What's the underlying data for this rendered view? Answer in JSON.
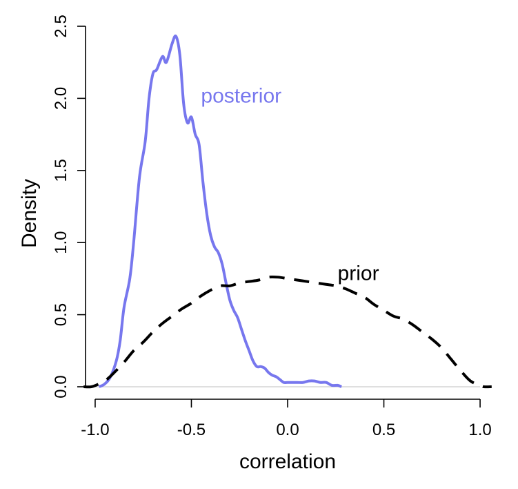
{
  "chart_data": {
    "type": "line",
    "title": "",
    "xlabel": "correlation",
    "ylabel": "Density",
    "xlim": [
      -1.05,
      1.05
    ],
    "ylim": [
      0,
      2.5
    ],
    "x_ticks": [
      -1.0,
      -0.5,
      0.0,
      0.5,
      1.0
    ],
    "x_tick_labels": [
      "-1.0",
      "-0.5",
      "0.0",
      "0.5",
      "1.0"
    ],
    "y_ticks": [
      0.0,
      0.5,
      1.0,
      1.5,
      2.0,
      2.5
    ],
    "y_tick_labels": [
      "0.0",
      "0.5",
      "1.0",
      "1.5",
      "2.0",
      "2.5"
    ],
    "reference_line_y": 0,
    "grid": false,
    "series": [
      {
        "name": "posterior",
        "color": "#7777ee",
        "style": "solid",
        "label_position": [
          -0.45,
          1.97
        ],
        "x": [
          -0.98,
          -0.95,
          -0.92,
          -0.89,
          -0.87,
          -0.85,
          -0.82,
          -0.8,
          -0.77,
          -0.74,
          -0.72,
          -0.7,
          -0.68,
          -0.65,
          -0.63,
          -0.6,
          -0.58,
          -0.56,
          -0.54,
          -0.52,
          -0.5,
          -0.48,
          -0.46,
          -0.44,
          -0.42,
          -0.4,
          -0.38,
          -0.36,
          -0.34,
          -0.32,
          -0.3,
          -0.28,
          -0.26,
          -0.24,
          -0.22,
          -0.2,
          -0.18,
          -0.16,
          -0.14,
          -0.12,
          -0.1,
          -0.08,
          -0.06,
          -0.04,
          -0.02,
          0.0,
          0.02,
          0.05,
          0.08,
          0.11,
          0.14,
          0.17,
          0.2,
          0.23,
          0.26,
          0.28
        ],
        "y": [
          0.0,
          0.02,
          0.07,
          0.18,
          0.32,
          0.55,
          0.75,
          1.0,
          1.45,
          1.7,
          2.0,
          2.17,
          2.2,
          2.29,
          2.25,
          2.38,
          2.43,
          2.3,
          1.96,
          1.83,
          1.87,
          1.75,
          1.68,
          1.42,
          1.2,
          1.05,
          0.97,
          0.93,
          0.85,
          0.72,
          0.6,
          0.53,
          0.48,
          0.4,
          0.32,
          0.25,
          0.18,
          0.14,
          0.14,
          0.13,
          0.1,
          0.08,
          0.07,
          0.05,
          0.03,
          0.03,
          0.03,
          0.03,
          0.03,
          0.04,
          0.04,
          0.03,
          0.03,
          0.01,
          0.01,
          0.0
        ]
      },
      {
        "name": "prior",
        "color": "#000000",
        "style": "dashed",
        "label_position": [
          0.26,
          0.74
        ],
        "x": [
          -1.06,
          -1.02,
          -0.98,
          -0.94,
          -0.9,
          -0.85,
          -0.8,
          -0.75,
          -0.7,
          -0.65,
          -0.6,
          -0.55,
          -0.5,
          -0.45,
          -0.4,
          -0.35,
          -0.3,
          -0.25,
          -0.2,
          -0.15,
          -0.1,
          -0.05,
          0.0,
          0.05,
          0.1,
          0.15,
          0.2,
          0.25,
          0.3,
          0.35,
          0.4,
          0.45,
          0.5,
          0.55,
          0.6,
          0.65,
          0.7,
          0.75,
          0.8,
          0.85,
          0.9,
          0.95,
          1.0,
          1.02,
          1.06
        ],
        "y": [
          0.0,
          0.0,
          0.02,
          0.05,
          0.1,
          0.17,
          0.25,
          0.31,
          0.38,
          0.44,
          0.49,
          0.54,
          0.58,
          0.63,
          0.67,
          0.7,
          0.7,
          0.72,
          0.73,
          0.74,
          0.76,
          0.76,
          0.75,
          0.74,
          0.73,
          0.72,
          0.71,
          0.7,
          0.68,
          0.65,
          0.62,
          0.57,
          0.53,
          0.49,
          0.47,
          0.43,
          0.38,
          0.33,
          0.27,
          0.19,
          0.11,
          0.04,
          0.01,
          0.0,
          0.0
        ]
      }
    ]
  }
}
